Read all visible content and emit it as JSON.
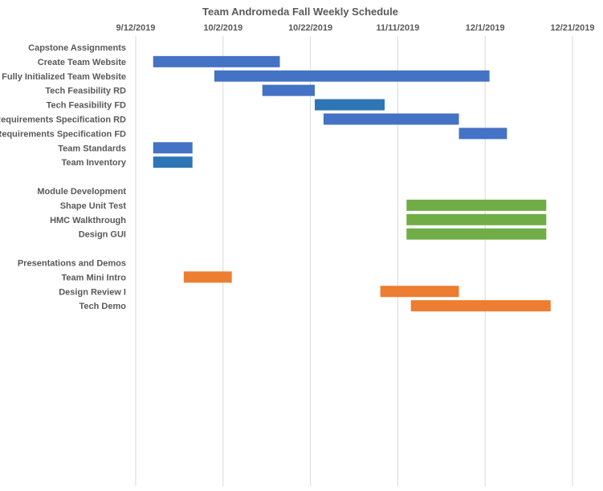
{
  "chart_data": {
    "type": "bar",
    "orientation": "horizontal-gantt",
    "title": "Team Andromeda Fall Weekly Schedule",
    "xlabel": "",
    "ylabel": "",
    "x_axis_position": "top",
    "x_ticks": [
      "9/12/2019",
      "10/2/2019",
      "10/22/2019",
      "11/11/2019",
      "12/1/2019",
      "12/21/2019"
    ],
    "xlim": [
      "9/12/2019",
      "12/21/2019"
    ],
    "grid": true,
    "legend": "none",
    "colors": {
      "blue": "#4472C4",
      "dark_blue": "#2E75B6",
      "green": "#70AD47",
      "orange": "#ED7D31"
    },
    "tasks": [
      {
        "label": "Capstone Assignments",
        "start": null,
        "end": null,
        "color": null
      },
      {
        "label": "Create Team Website",
        "start": "9/16/2019",
        "end": "10/15/2019",
        "color": "#4472C4"
      },
      {
        "label": "Fully Initialized Team Website",
        "start": "9/30/2019",
        "end": "12/2/2019",
        "color": "#4472C4"
      },
      {
        "label": "Tech Feasibility RD",
        "start": "10/11/2019",
        "end": "10/23/2019",
        "color": "#4472C4"
      },
      {
        "label": "Tech Feasibility FD",
        "start": "10/23/2019",
        "end": "11/8/2019",
        "color": "#2E75B6"
      },
      {
        "label": "Requirements Specification RD",
        "start": "10/25/2019",
        "end": "11/25/2019",
        "color": "#4472C4"
      },
      {
        "label": "Requirements Specification FD",
        "start": "11/25/2019",
        "end": "12/6/2019",
        "color": "#4472C4"
      },
      {
        "label": "Team Standards",
        "start": "9/16/2019",
        "end": "9/25/2019",
        "color": "#4472C4"
      },
      {
        "label": "Team Inventory",
        "start": "9/16/2019",
        "end": "9/25/2019",
        "color": "#2E75B6"
      },
      {
        "label": "",
        "start": null,
        "end": null,
        "color": null
      },
      {
        "label": "Module Development",
        "start": null,
        "end": null,
        "color": null
      },
      {
        "label": "Shape Unit Test",
        "start": "11/13/2019",
        "end": "12/15/2019",
        "color": "#70AD47"
      },
      {
        "label": "HMC Walkthrough",
        "start": "11/13/2019",
        "end": "12/15/2019",
        "color": "#70AD47"
      },
      {
        "label": "Design GUI",
        "start": "11/13/2019",
        "end": "12/15/2019",
        "color": "#70AD47"
      },
      {
        "label": "",
        "start": null,
        "end": null,
        "color": null
      },
      {
        "label": "Presentations and Demos",
        "start": null,
        "end": null,
        "color": null
      },
      {
        "label": "Team Mini Intro",
        "start": "9/23/2019",
        "end": "10/4/2019",
        "color": "#ED7D31"
      },
      {
        "label": "Design Review I",
        "start": "11/7/2019",
        "end": "11/25/2019",
        "color": "#ED7D31"
      },
      {
        "label": "Tech Demo",
        "start": "11/14/2019",
        "end": "12/16/2019",
        "color": "#ED7D31"
      }
    ]
  }
}
